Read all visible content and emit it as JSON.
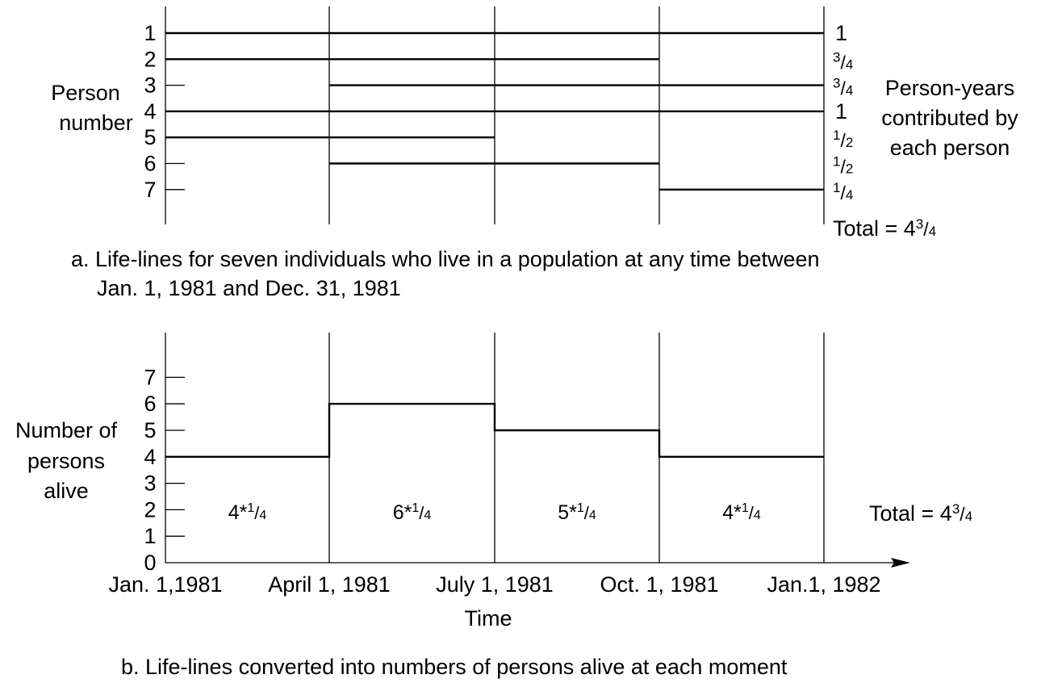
{
  "chart_data": [
    {
      "type": "line",
      "panel_caption": "a. Life-lines for seven individuals who live in a population at any time between",
      "panel_caption_cont": "Jan. 1, 1981 and Dec. 31, 1981",
      "ylabel_line1": "Person",
      "ylabel_line2": "number",
      "right_label_line1": "Person-years",
      "right_label_line2": "contributed by",
      "right_label_line3": "each person",
      "total_label": "Total = 4",
      "total_frac": "3/4",
      "x_dividers": [
        "Jan. 1,1981",
        "April 1, 1981",
        "July 1, 1981",
        "Oct. 1, 1981",
        "Jan.1, 1982"
      ],
      "persons": [
        {
          "id": "1",
          "start": "Jan. 1,1981",
          "end": "Jan.1, 1982",
          "person_years": "1"
        },
        {
          "id": "2",
          "start": "Jan. 1,1981",
          "end": "Oct. 1, 1981",
          "person_years": "3/4"
        },
        {
          "id": "3",
          "start": "April 1, 1981",
          "end": "Jan.1, 1982",
          "person_years": "3/4"
        },
        {
          "id": "4",
          "start": "Jan. 1,1981",
          "end": "Jan.1, 1982",
          "person_years": "1"
        },
        {
          "id": "5",
          "start": "Jan. 1,1981",
          "end": "July 1, 1981",
          "person_years": "1/2"
        },
        {
          "id": "6",
          "start": "April 1, 1981",
          "end": "Oct. 1, 1981",
          "person_years": "1/2"
        },
        {
          "id": "7",
          "start": "Oct. 1, 1981",
          "end": "Jan.1, 1982",
          "person_years": "1/4"
        }
      ]
    },
    {
      "type": "line",
      "panel_caption": "b. Life-lines converted into numbers of persons alive at each moment",
      "ylabel_line1": "Number of",
      "ylabel_line2": "persons",
      "ylabel_line3": "alive",
      "xlabel": "Time",
      "x_ticks": [
        "Jan. 1,1981",
        "April 1, 1981",
        "July 1, 1981",
        "Oct. 1, 1981",
        "Jan.1, 1982"
      ],
      "y_ticks": [
        "0",
        "1",
        "2",
        "3",
        "4",
        "5",
        "6",
        "7"
      ],
      "ylim": [
        0,
        7
      ],
      "series": [
        {
          "segments": [
            {
              "start": "Jan. 1,1981",
              "end": "April 1, 1981",
              "value": 4,
              "label": "4*",
              "label_frac": "1/4"
            },
            {
              "start": "April 1, 1981",
              "end": "July 1, 1981",
              "value": 6,
              "label": "6*",
              "label_frac": "1/4"
            },
            {
              "start": "July 1, 1981",
              "end": "Oct. 1, 1981",
              "value": 5,
              "label": "5*",
              "label_frac": "1/4"
            },
            {
              "start": "Oct. 1, 1981",
              "end": "Jan.1, 1982",
              "value": 4,
              "label": "4*",
              "label_frac": "1/4"
            }
          ]
        }
      ],
      "total_label": "Total = 4",
      "total_frac": "3/4"
    }
  ]
}
